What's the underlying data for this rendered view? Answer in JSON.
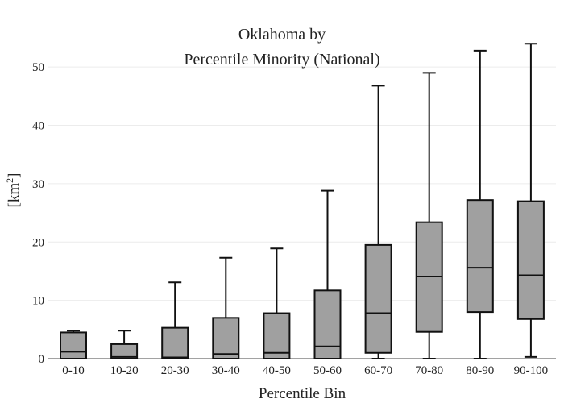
{
  "chart_data": {
    "type": "box",
    "title_line1": "Oklahoma  by",
    "title_line2": "Percentile Minority (National)",
    "xlabel": "Percentile Bin",
    "ylabel_base": "[km",
    "ylabel_sup": "2",
    "ylabel_end": "]",
    "ylim": [
      0,
      55
    ],
    "yticks": [
      "0",
      "10",
      "20",
      "30",
      "40",
      "50"
    ],
    "ytick_values": [
      0,
      10,
      20,
      30,
      40,
      50
    ],
    "grid": true,
    "legend": "none",
    "box_color": "#a0a0a0",
    "categories": [
      "0-10",
      "10-20",
      "20-30",
      "30-40",
      "40-50",
      "50-60",
      "60-70",
      "70-80",
      "80-90",
      "90-100"
    ],
    "boxes": [
      {
        "min": 0,
        "q1": 0,
        "median": 1.2,
        "q3": 4.5,
        "max": 4.8
      },
      {
        "min": 0,
        "q1": 0,
        "median": 0.3,
        "q3": 2.5,
        "max": 4.8
      },
      {
        "min": 0,
        "q1": 0,
        "median": 0.2,
        "q3": 5.3,
        "max": 13.1
      },
      {
        "min": 0,
        "q1": 0,
        "median": 0.8,
        "q3": 7.0,
        "max": 17.3
      },
      {
        "min": 0,
        "q1": 0,
        "median": 1.0,
        "q3": 7.8,
        "max": 18.9
      },
      {
        "min": 0,
        "q1": 0,
        "median": 2.1,
        "q3": 11.7,
        "max": 28.8
      },
      {
        "min": 0,
        "q1": 1.0,
        "median": 7.8,
        "q3": 19.5,
        "max": 46.8
      },
      {
        "min": 0,
        "q1": 4.6,
        "median": 14.1,
        "q3": 23.4,
        "max": 49.0
      },
      {
        "min": 0,
        "q1": 8.0,
        "median": 15.6,
        "q3": 27.2,
        "max": 52.8
      },
      {
        "min": 0.3,
        "q1": 6.8,
        "median": 14.3,
        "q3": 27.0,
        "max": 54.0
      }
    ]
  }
}
